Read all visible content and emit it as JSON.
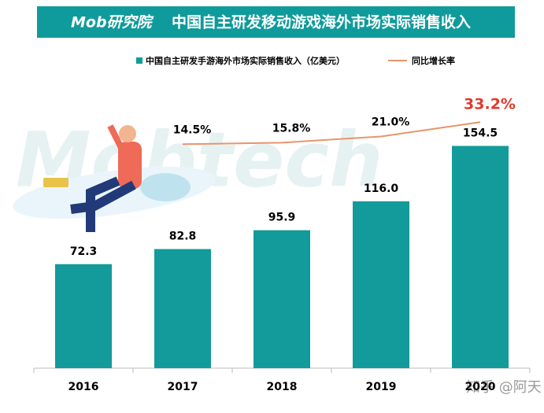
{
  "logo": "Mob研究院",
  "watermarks": [
    "Mobtech",
    "知乎 @阿天"
  ],
  "chart_data": {
    "type": "bar-line",
    "title": "中国自主研发移动游戏海外市场实际销售收入",
    "categories": [
      "2016",
      "2017",
      "2018",
      "2019",
      "2020"
    ],
    "ylim": [
      0,
      175
    ],
    "y2lim": [
      -175,
      38
    ],
    "series": [
      {
        "name": "中国自主研发手游海外市场实际销售收入（亿美元）",
        "type": "bar",
        "color": "#129b9a",
        "values": [
          72.3,
          82.8,
          95.9,
          116.0,
          154.5
        ],
        "value_labels": [
          "72.3",
          "82.8",
          "95.9",
          "116.0",
          "154.5"
        ]
      },
      {
        "name": "同比增长率",
        "type": "line",
        "axis": "y2",
        "color": "#e8946c",
        "highlight_color": "#e03a2e",
        "values": [
          null,
          14.5,
          15.8,
          21.0,
          33.2
        ],
        "value_labels": [
          null,
          "14.5%",
          "15.8%",
          "21.0%",
          "33.2%"
        ]
      }
    ]
  }
}
